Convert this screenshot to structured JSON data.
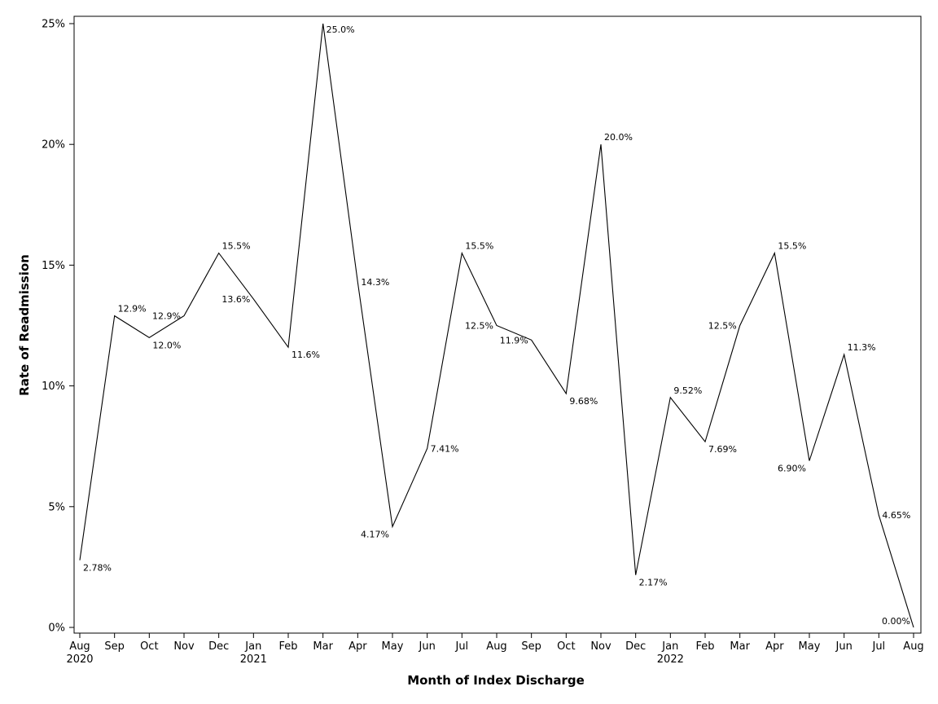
{
  "chart_data": {
    "type": "line",
    "title": "",
    "xlabel": "Month of Index Discharge",
    "ylabel": "Rate of Readmission",
    "ylim": [
      0,
      25
    ],
    "yticks": [
      "0%",
      "5%",
      "10%",
      "15%",
      "20%",
      "25%"
    ],
    "ytick_values": [
      0,
      5,
      10,
      15,
      20,
      25
    ],
    "grid": false,
    "legend": "none",
    "line_color": "#000000",
    "x": [
      "Aug 2020",
      "Sep 2020",
      "Oct 2020",
      "Nov 2020",
      "Dec 2020",
      "Jan 2021",
      "Feb 2021",
      "Mar 2021",
      "Apr 2021",
      "May 2021",
      "Jun 2021",
      "Jul 2021",
      "Aug 2021",
      "Sep 2021",
      "Oct 2021",
      "Nov 2021",
      "Dec 2021",
      "Jan 2022",
      "Feb 2022",
      "Mar 2022",
      "Apr 2022",
      "May 2022",
      "Jun 2022",
      "Jul 2022",
      "Aug 2022"
    ],
    "tick_month": [
      "Aug",
      "Sep",
      "Oct",
      "Nov",
      "Dec",
      "Jan",
      "Feb",
      "Mar",
      "Apr",
      "May",
      "Jun",
      "Jul",
      "Aug",
      "Sep",
      "Oct",
      "Nov",
      "Dec",
      "Jan",
      "Feb",
      "Mar",
      "Apr",
      "May",
      "Jun",
      "Jul",
      "Aug"
    ],
    "tick_year": [
      "2020",
      "",
      "",
      "",
      "",
      "2021",
      "",
      "",
      "",
      "",
      "",
      "",
      "",
      "",
      "",
      "",
      "",
      "2022",
      "",
      "",
      "",
      "",
      "",
      "",
      ""
    ],
    "values": [
      2.78,
      12.9,
      12.0,
      12.9,
      15.5,
      13.6,
      11.6,
      25.0,
      14.3,
      4.17,
      7.41,
      15.5,
      12.5,
      11.9,
      9.68,
      20.0,
      2.17,
      9.52,
      7.69,
      12.5,
      15.5,
      6.9,
      11.3,
      4.65,
      0.0
    ],
    "labels": [
      "2.78%",
      "12.9%",
      "12.0%",
      "12.9%",
      "15.5%",
      "13.6%",
      "11.6%",
      "25.0%",
      "14.3%",
      "4.17%",
      "7.41%",
      "15.5%",
      "12.5%",
      "11.9%",
      "9.68%",
      "20.0%",
      "2.17%",
      "9.52%",
      "7.69%",
      "12.5%",
      "15.5%",
      "6.90%",
      "11.3%",
      "4.65%",
      "0.00%"
    ]
  }
}
